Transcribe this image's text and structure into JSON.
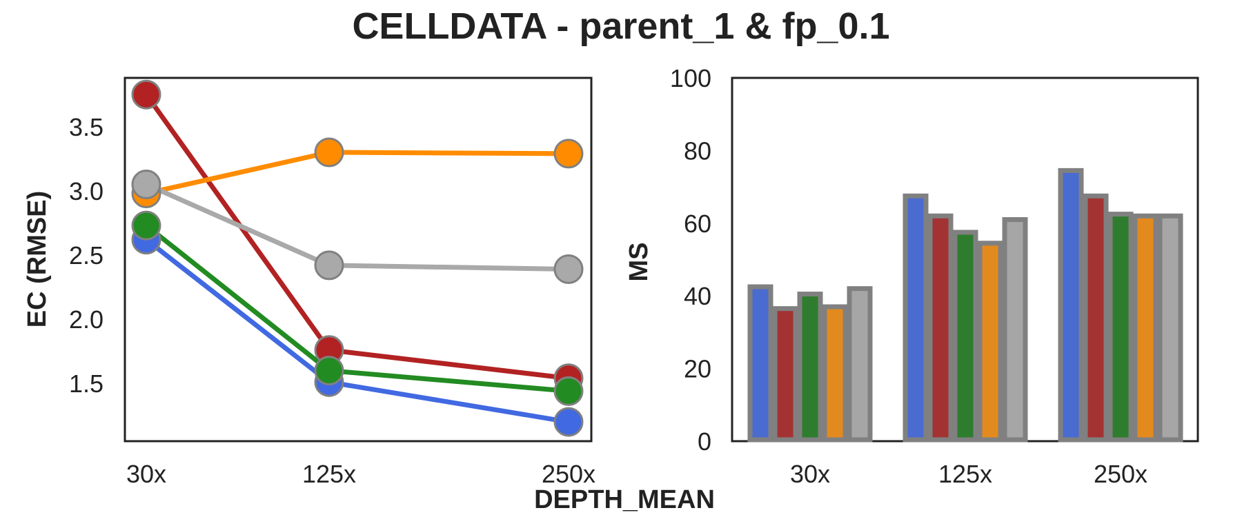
{
  "figure": {
    "title": "CELLDATA - parent_1 & fp_0.1",
    "shared_xlabel": "DEPTH_MEAN"
  },
  "chart_data": [
    {
      "type": "line",
      "title": "",
      "xlabel": "",
      "ylabel": "EC (RMSE)",
      "categories": [
        "30x",
        "125x",
        "250x"
      ],
      "ylim": [
        1.05,
        3.88
      ],
      "yticks": [
        1.5,
        2.0,
        2.5,
        3.0,
        3.5
      ],
      "ytick_labels": [
        "1.5",
        "2.0",
        "2.5",
        "3.0",
        "3.5"
      ],
      "grid": false,
      "legend": "none",
      "series": [
        {
          "color": "#4169e1",
          "values": [
            2.62,
            1.51,
            1.2
          ]
        },
        {
          "color": "#b22222",
          "values": [
            3.75,
            1.76,
            1.54
          ]
        },
        {
          "color": "#228b22",
          "values": [
            2.73,
            1.6,
            1.44
          ]
        },
        {
          "color": "#ff8c00",
          "values": [
            2.98,
            3.3,
            3.29
          ]
        },
        {
          "color": "#a9a9a9",
          "values": [
            3.05,
            2.42,
            2.39
          ]
        }
      ]
    },
    {
      "type": "bar",
      "title": "",
      "xlabel": "",
      "ylabel": "MS",
      "categories": [
        "30x",
        "125x",
        "250x"
      ],
      "ylim": [
        0,
        100
      ],
      "yticks": [
        0,
        20,
        40,
        60,
        80,
        100
      ],
      "ytick_labels": [
        "0",
        "20",
        "40",
        "60",
        "80",
        "100"
      ],
      "grid": false,
      "legend": "none",
      "series": [
        {
          "color": "#4a6bd0",
          "values": [
            42.5,
            67.5,
            74.5
          ]
        },
        {
          "color": "#a33333",
          "values": [
            36.5,
            62,
            67.5
          ]
        },
        {
          "color": "#2e7d2e",
          "values": [
            40.5,
            57.5,
            62.5
          ]
        },
        {
          "color": "#e38a1f",
          "values": [
            37,
            54.5,
            62
          ]
        },
        {
          "color": "#a6a6a6",
          "values": [
            42,
            61,
            62
          ]
        }
      ]
    }
  ]
}
